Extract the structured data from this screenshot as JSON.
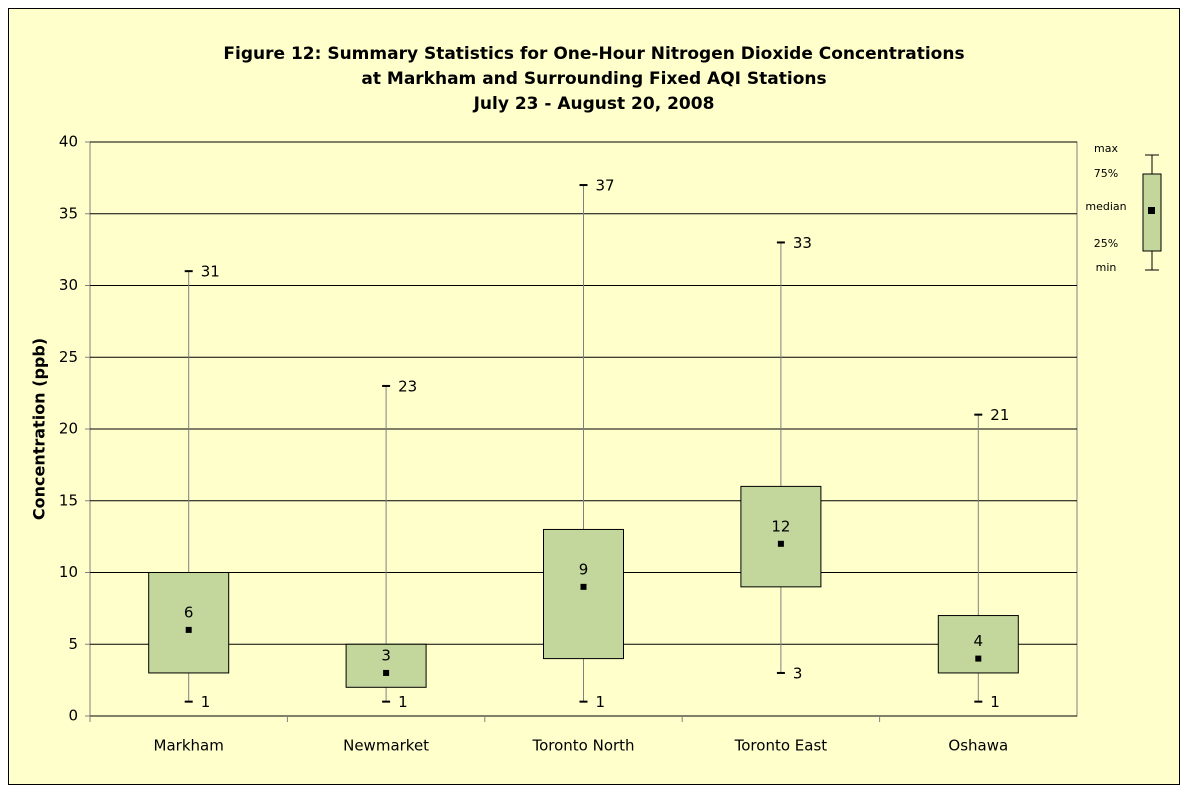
{
  "chart_data": {
    "type": "box",
    "title": [
      "Figure 12:  Summary Statistics for  One-Hour Nitrogen Dioxide Concentrations",
      "at Markham and Surrounding Fixed AQI Stations",
      "July 23 - August 20, 2008"
    ],
    "y_label": "Concentration (ppb)",
    "categories": [
      "Markham",
      "Newmarket",
      "Toronto North",
      "Toronto East",
      "Oshawa"
    ],
    "min": [
      1,
      1,
      1,
      3,
      1
    ],
    "q1": [
      3,
      2,
      4,
      9,
      3
    ],
    "median": [
      6,
      3,
      9,
      12,
      4
    ],
    "q3": [
      10,
      5,
      13,
      16,
      7
    ],
    "max": [
      31,
      23,
      37,
      33,
      21
    ],
    "color": "#c3d69b",
    "ylim": [
      0,
      40
    ],
    "yticks": [
      0,
      5,
      10,
      15,
      20,
      25,
      30,
      35,
      40
    ],
    "grid": true,
    "legend_labels": [
      "max",
      "75%",
      "median",
      "25%",
      "min"
    ]
  }
}
